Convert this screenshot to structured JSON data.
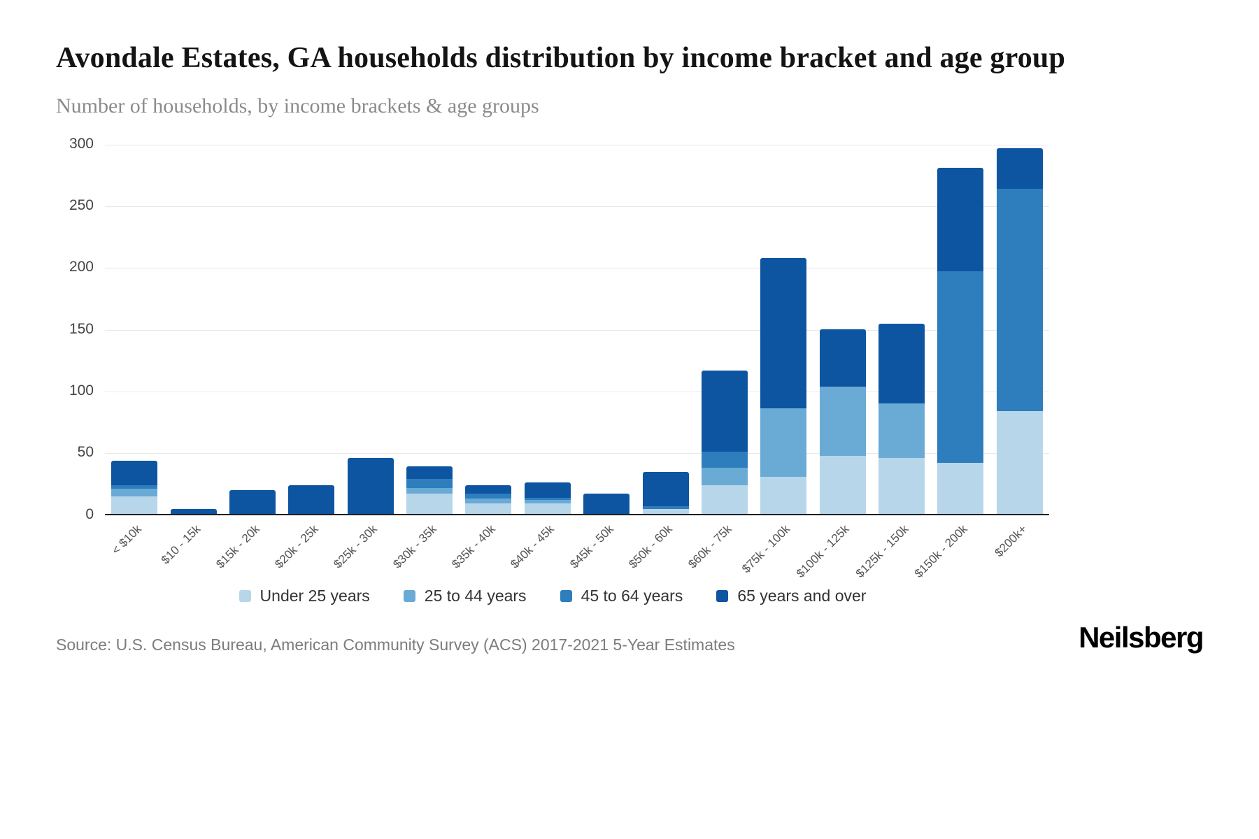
{
  "header": {
    "title": "Avondale Estates, GA households distribution by income bracket and age group",
    "subtitle": "Number of households, by income brackets & age groups"
  },
  "chart_data": {
    "type": "bar",
    "stacked": true,
    "title": "Avondale Estates, GA households distribution by income bracket and age group",
    "subtitle": "Number of households, by income brackets & age groups",
    "xlabel": "",
    "ylabel": "",
    "ylim": [
      0,
      300
    ],
    "yticks": [
      0,
      50,
      100,
      150,
      200,
      250,
      300
    ],
    "grid": true,
    "legend_position": "bottom",
    "categories": [
      "< $10k",
      "$10 - 15k",
      "$15k - 20k",
      "$20k - 25k",
      "$25k - 30k",
      "$30k - 35k",
      "$35k - 40k",
      "$40k - 45k",
      "$45k - 50k",
      "$50k - 60k",
      "$60k - 75k",
      "$75k - 100k",
      "$100k - 125k",
      "$125k - 150k",
      "$150k - 200k",
      "$200k+"
    ],
    "series": [
      {
        "name": "Under 25 years",
        "color": "#b8d6ea",
        "values": [
          14,
          0,
          0,
          0,
          0,
          16,
          8,
          8,
          0,
          4,
          23,
          30,
          47,
          45,
          41,
          83
        ]
      },
      {
        "name": "25 to 44 years",
        "color": "#69abd5",
        "values": [
          6,
          0,
          0,
          0,
          0,
          5,
          4,
          3,
          0,
          0,
          14,
          55,
          56,
          44,
          0,
          0
        ]
      },
      {
        "name": "45 to 64 years",
        "color": "#2e7ebd",
        "values": [
          3,
          0,
          0,
          0,
          0,
          7,
          4,
          2,
          0,
          2,
          13,
          0,
          0,
          0,
          155,
          180
        ]
      },
      {
        "name": "65 years and over",
        "color": "#0d55a1",
        "values": [
          20,
          4,
          19,
          23,
          45,
          10,
          7,
          12,
          16,
          28,
          66,
          122,
          46,
          65,
          84,
          33
        ]
      }
    ]
  },
  "footer": {
    "source": "Source: U.S. Census Bureau, American Community Survey (ACS) 2017-2021 5-Year Estimates",
    "brand": "Neilsberg"
  }
}
